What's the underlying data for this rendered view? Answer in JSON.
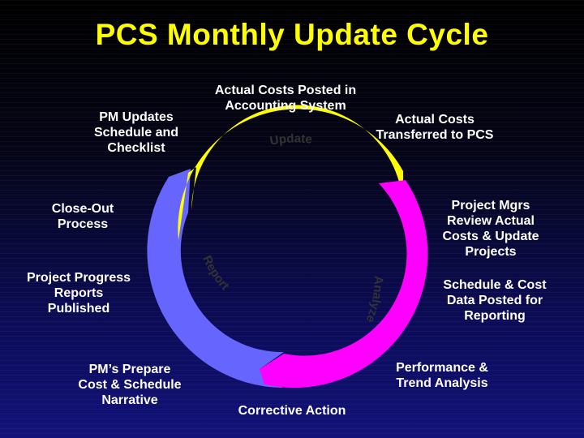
{
  "slide": {
    "title": "PCS Monthly Update Cycle",
    "background": "#0c0c5a",
    "title_color": "#ffff00"
  },
  "cycle": {
    "segments": [
      {
        "label": "Update",
        "color": "#ffff00"
      },
      {
        "label": "Analyze",
        "color": "#ff00ff"
      },
      {
        "label": "Report",
        "color": "#6666ff"
      }
    ]
  },
  "steps": [
    {
      "text": "Actual Costs Posted in\nAccounting System"
    },
    {
      "text": "Actual Costs\nTransferred to PCS"
    },
    {
      "text": "Project Mgrs\nReview  Actual\nCosts & Update\nProjects"
    },
    {
      "text": "Schedule & Cost\nData Posted for\nReporting"
    },
    {
      "text": "Performance &\nTrend Analysis"
    },
    {
      "text": "Corrective Action"
    },
    {
      "text": "PM’s Prepare\nCost & Schedule\nNarrative"
    },
    {
      "text": "Project Progress\nReports\nPublished"
    },
    {
      "text": "Close-Out\nProcess"
    },
    {
      "text": "PM Updates\nSchedule and\nChecklist"
    }
  ]
}
